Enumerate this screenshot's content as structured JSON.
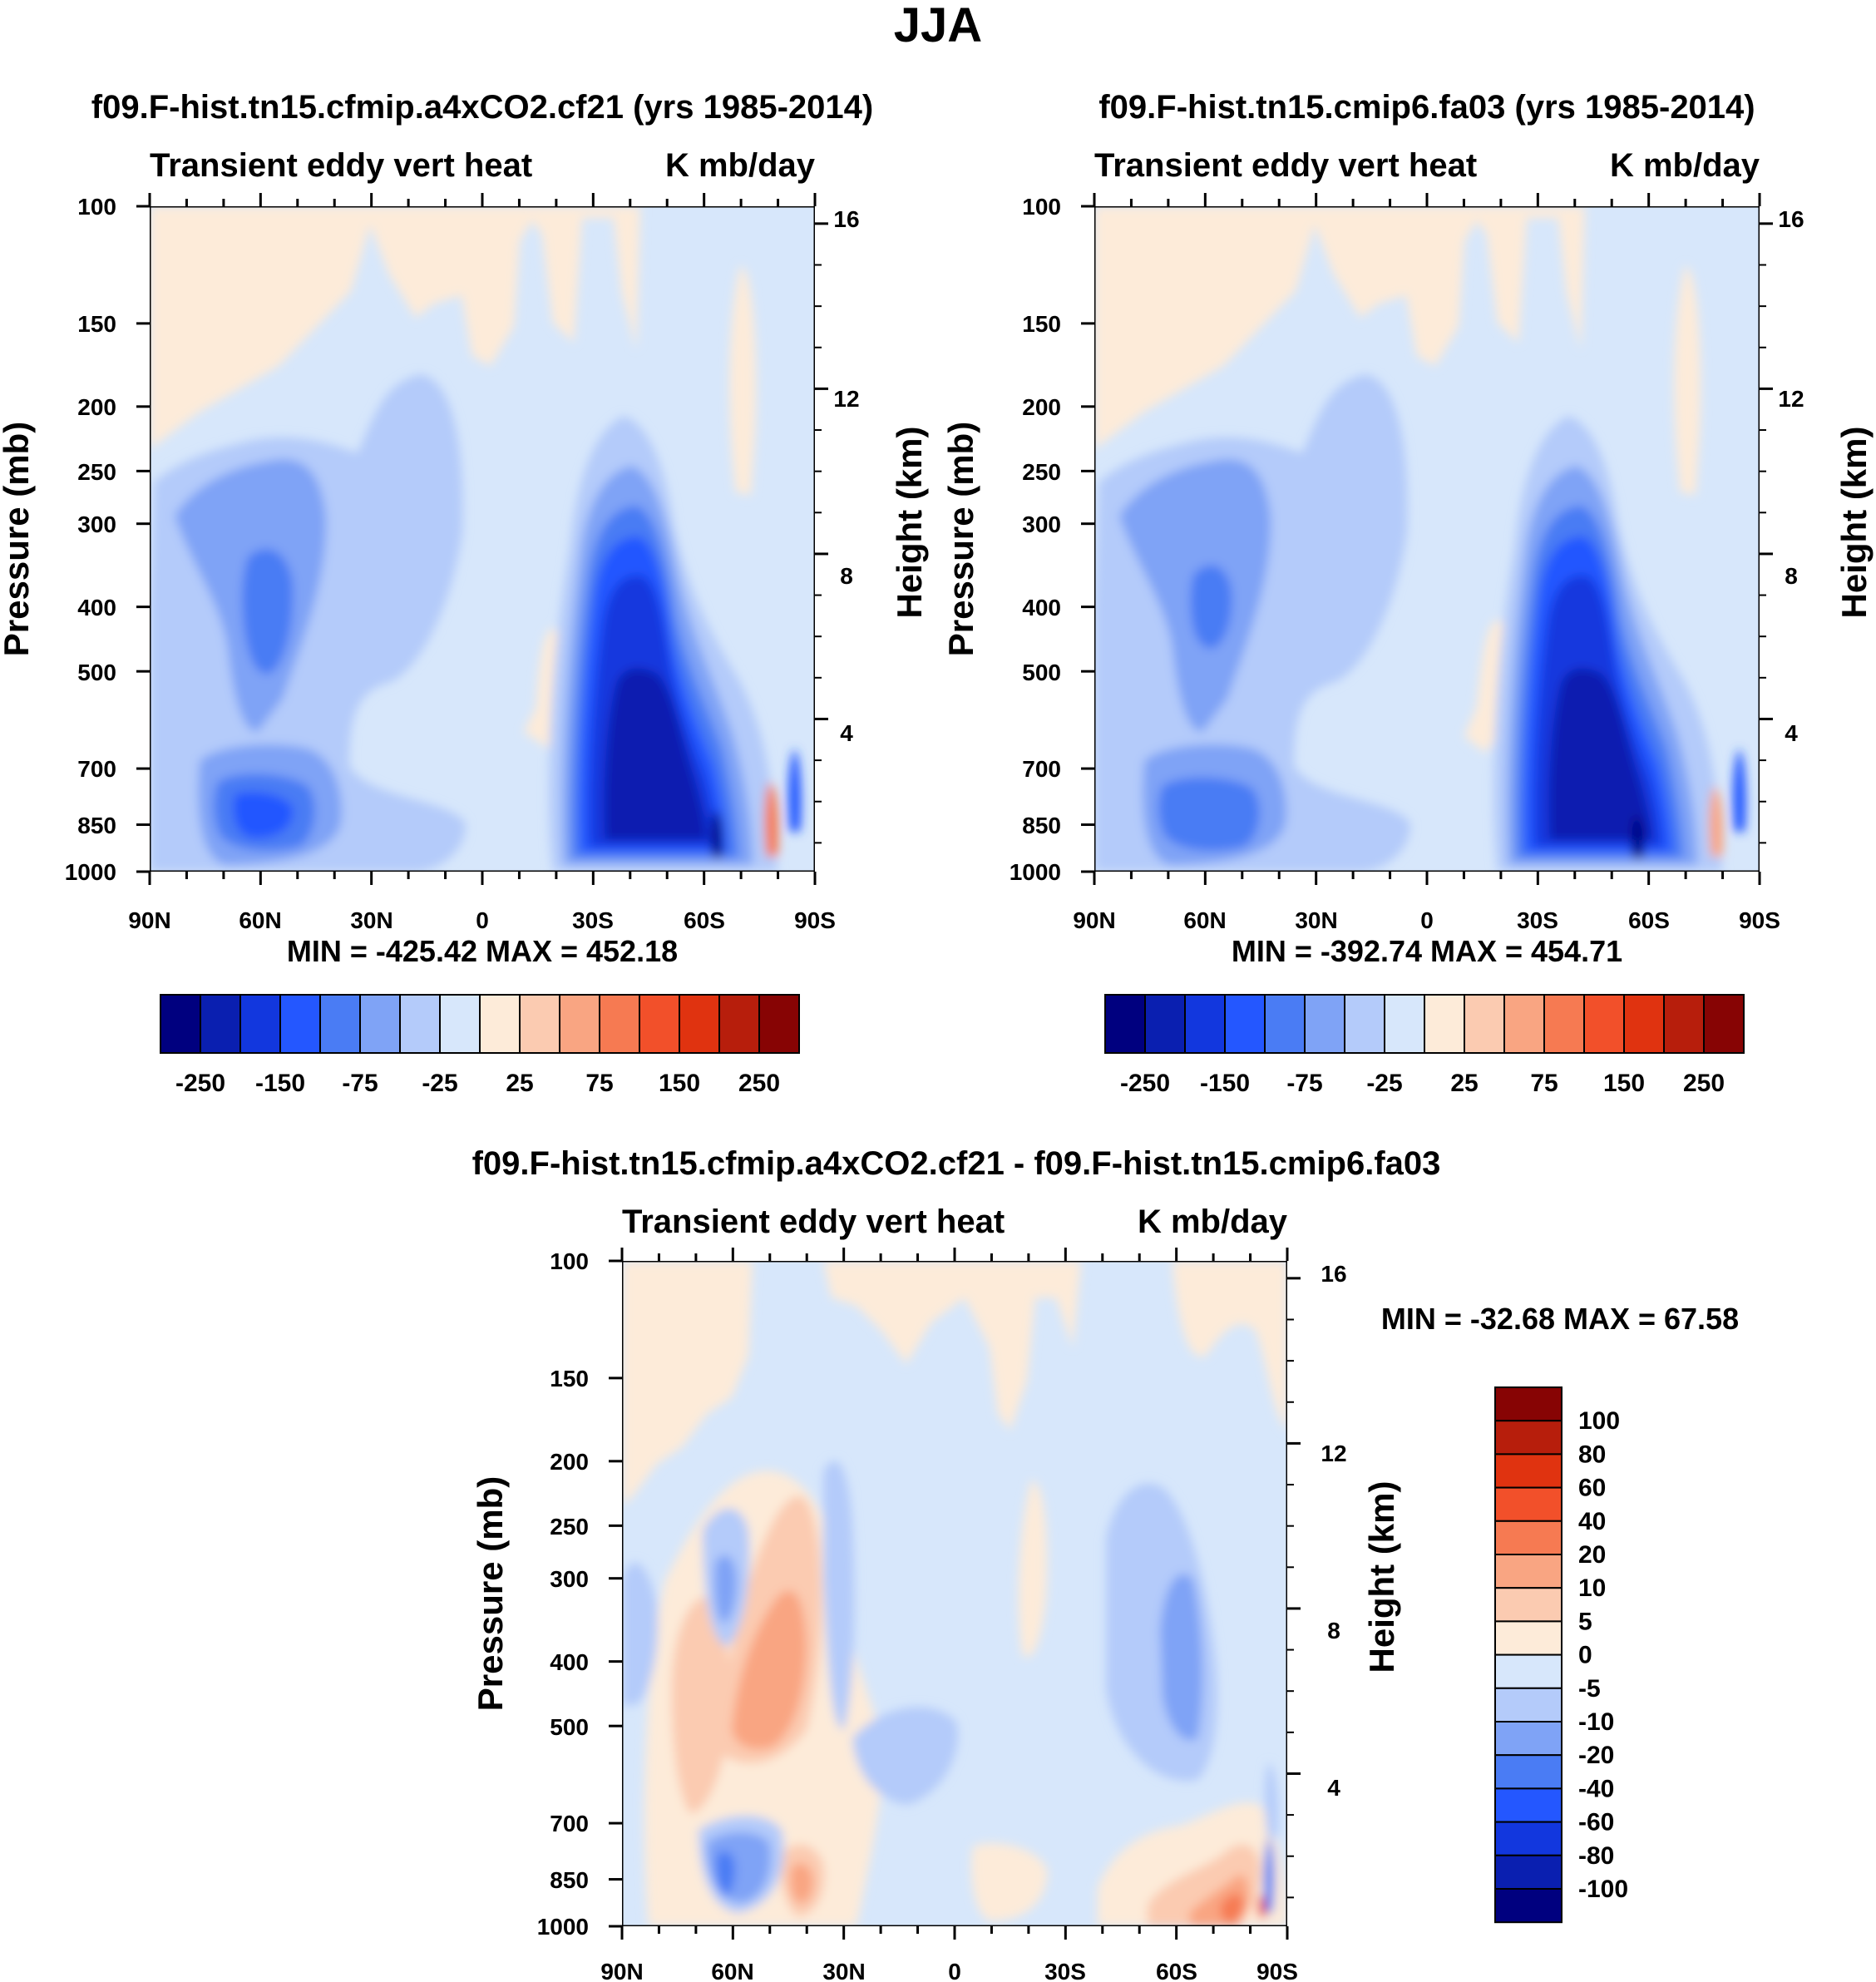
{
  "title": "JJA",
  "colors": {
    "abs_levels": [
      "#00007f",
      "#0a1fb0",
      "#1237de",
      "#2457ff",
      "#4a7cf4",
      "#7fa3f6",
      "#b4cbfa",
      "#d7e7fb",
      "#fdebd9",
      "#fbcbb1",
      "#f9a582",
      "#f67a52",
      "#f2502a",
      "#e03310",
      "#b71e0c",
      "#870404"
    ],
    "diff_levels": [
      "#00007f",
      "#0a1fb0",
      "#1237de",
      "#2457ff",
      "#4a7cf4",
      "#7fa3f6",
      "#b4cbfa",
      "#d7e7fb",
      "#fdebd9",
      "#fbcbb1",
      "#f9a582",
      "#f67a52",
      "#f2502a",
      "#e03310",
      "#b71e0c",
      "#870404"
    ]
  },
  "chart_data": [
    {
      "type": "heatmap",
      "title": "f09.F-hist.tn15.cfmip.a4xCO2.cf21 (yrs 1985-2014)",
      "subtitle_left": "Transient eddy vert heat",
      "subtitle_right": "K mb/day",
      "ylabel": "Pressure (mb)",
      "ylabel_right": "Height (km)",
      "x_ticks": [
        "90N",
        "60N",
        "30N",
        "0",
        "30S",
        "60S",
        "90S"
      ],
      "y_ticks": [
        "100",
        "150",
        "200",
        "250",
        "300",
        "400",
        "500",
        "700",
        "850",
        "1000"
      ],
      "y_right_ticks": [
        "16",
        "12",
        "8",
        "4"
      ],
      "stats": "MIN = -425.42  MAX = 452.18",
      "min": -425.42,
      "max": 452.18,
      "colorbar_labels": [
        "-250",
        "-150",
        "-75",
        "-25",
        "25",
        "75",
        "150",
        "250"
      ]
    },
    {
      "type": "heatmap",
      "title": "f09.F-hist.tn15.cmip6.fa03 (yrs 1985-2014)",
      "subtitle_left": "Transient eddy vert heat",
      "subtitle_right": "K mb/day",
      "ylabel": "Pressure (mb)",
      "ylabel_right": "Height (km)",
      "x_ticks": [
        "90N",
        "60N",
        "30N",
        "0",
        "30S",
        "60S",
        "90S"
      ],
      "y_ticks": [
        "100",
        "150",
        "200",
        "250",
        "300",
        "400",
        "500",
        "700",
        "850",
        "1000"
      ],
      "y_right_ticks": [
        "16",
        "12",
        "8",
        "4"
      ],
      "stats": "MIN = -392.74  MAX = 454.71",
      "min": -392.74,
      "max": 454.71,
      "colorbar_labels": [
        "-250",
        "-150",
        "-75",
        "-25",
        "25",
        "75",
        "150",
        "250"
      ]
    },
    {
      "type": "heatmap",
      "title": "f09.F-hist.tn15.cfmip.a4xCO2.cf21 - f09.F-hist.tn15.cmip6.fa03",
      "subtitle_left": "Transient eddy vert heat",
      "subtitle_right": "K mb/day",
      "ylabel": "Pressure (mb)",
      "ylabel_right": "Height (km)",
      "x_ticks": [
        "90N",
        "60N",
        "30N",
        "0",
        "30S",
        "60S",
        "90S"
      ],
      "y_ticks": [
        "100",
        "150",
        "200",
        "250",
        "300",
        "400",
        "500",
        "700",
        "850",
        "1000"
      ],
      "y_right_ticks": [
        "16",
        "12",
        "8",
        "4"
      ],
      "stats": "MIN = -32.68  MAX =  67.58",
      "min": -32.68,
      "max": 67.58,
      "colorbar_labels": [
        "100",
        "80",
        "60",
        "40",
        "20",
        "10",
        "5",
        "0",
        "-5",
        "-10",
        "-20",
        "-40",
        "-60",
        "-80",
        "-100"
      ]
    }
  ]
}
